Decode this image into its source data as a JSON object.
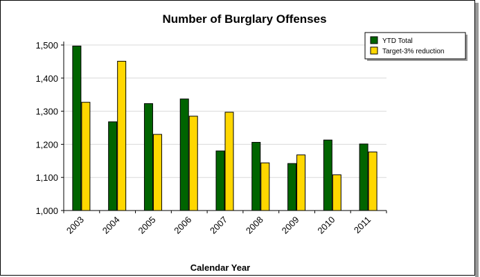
{
  "chart_data": {
    "type": "bar",
    "title": "Number of Burglary Offenses",
    "xlabel": "Calendar Year",
    "ylabel": "",
    "ylim": [
      1000,
      1500
    ],
    "yticks": [
      1000,
      1100,
      1200,
      1300,
      1400,
      1500
    ],
    "ytick_labels": [
      "1,000",
      "1,100",
      "1,200",
      "1,300",
      "1,400",
      "1,500"
    ],
    "grid": true,
    "legend_position": "top-right",
    "categories": [
      "2003",
      "2004",
      "2005",
      "2006",
      "2007",
      "2008",
      "2009",
      "2010",
      "2011"
    ],
    "series": [
      {
        "name": "YTD Total",
        "color": "#006400",
        "values": [
          1497,
          1268,
          1323,
          1337,
          1180,
          1206,
          1142,
          1213,
          1201
        ]
      },
      {
        "name": "Target-3% reduction",
        "color": "#FFD700",
        "values": [
          1327,
          1451,
          1230,
          1285,
          1297,
          1144,
          1168,
          1108,
          1177
        ]
      }
    ]
  }
}
